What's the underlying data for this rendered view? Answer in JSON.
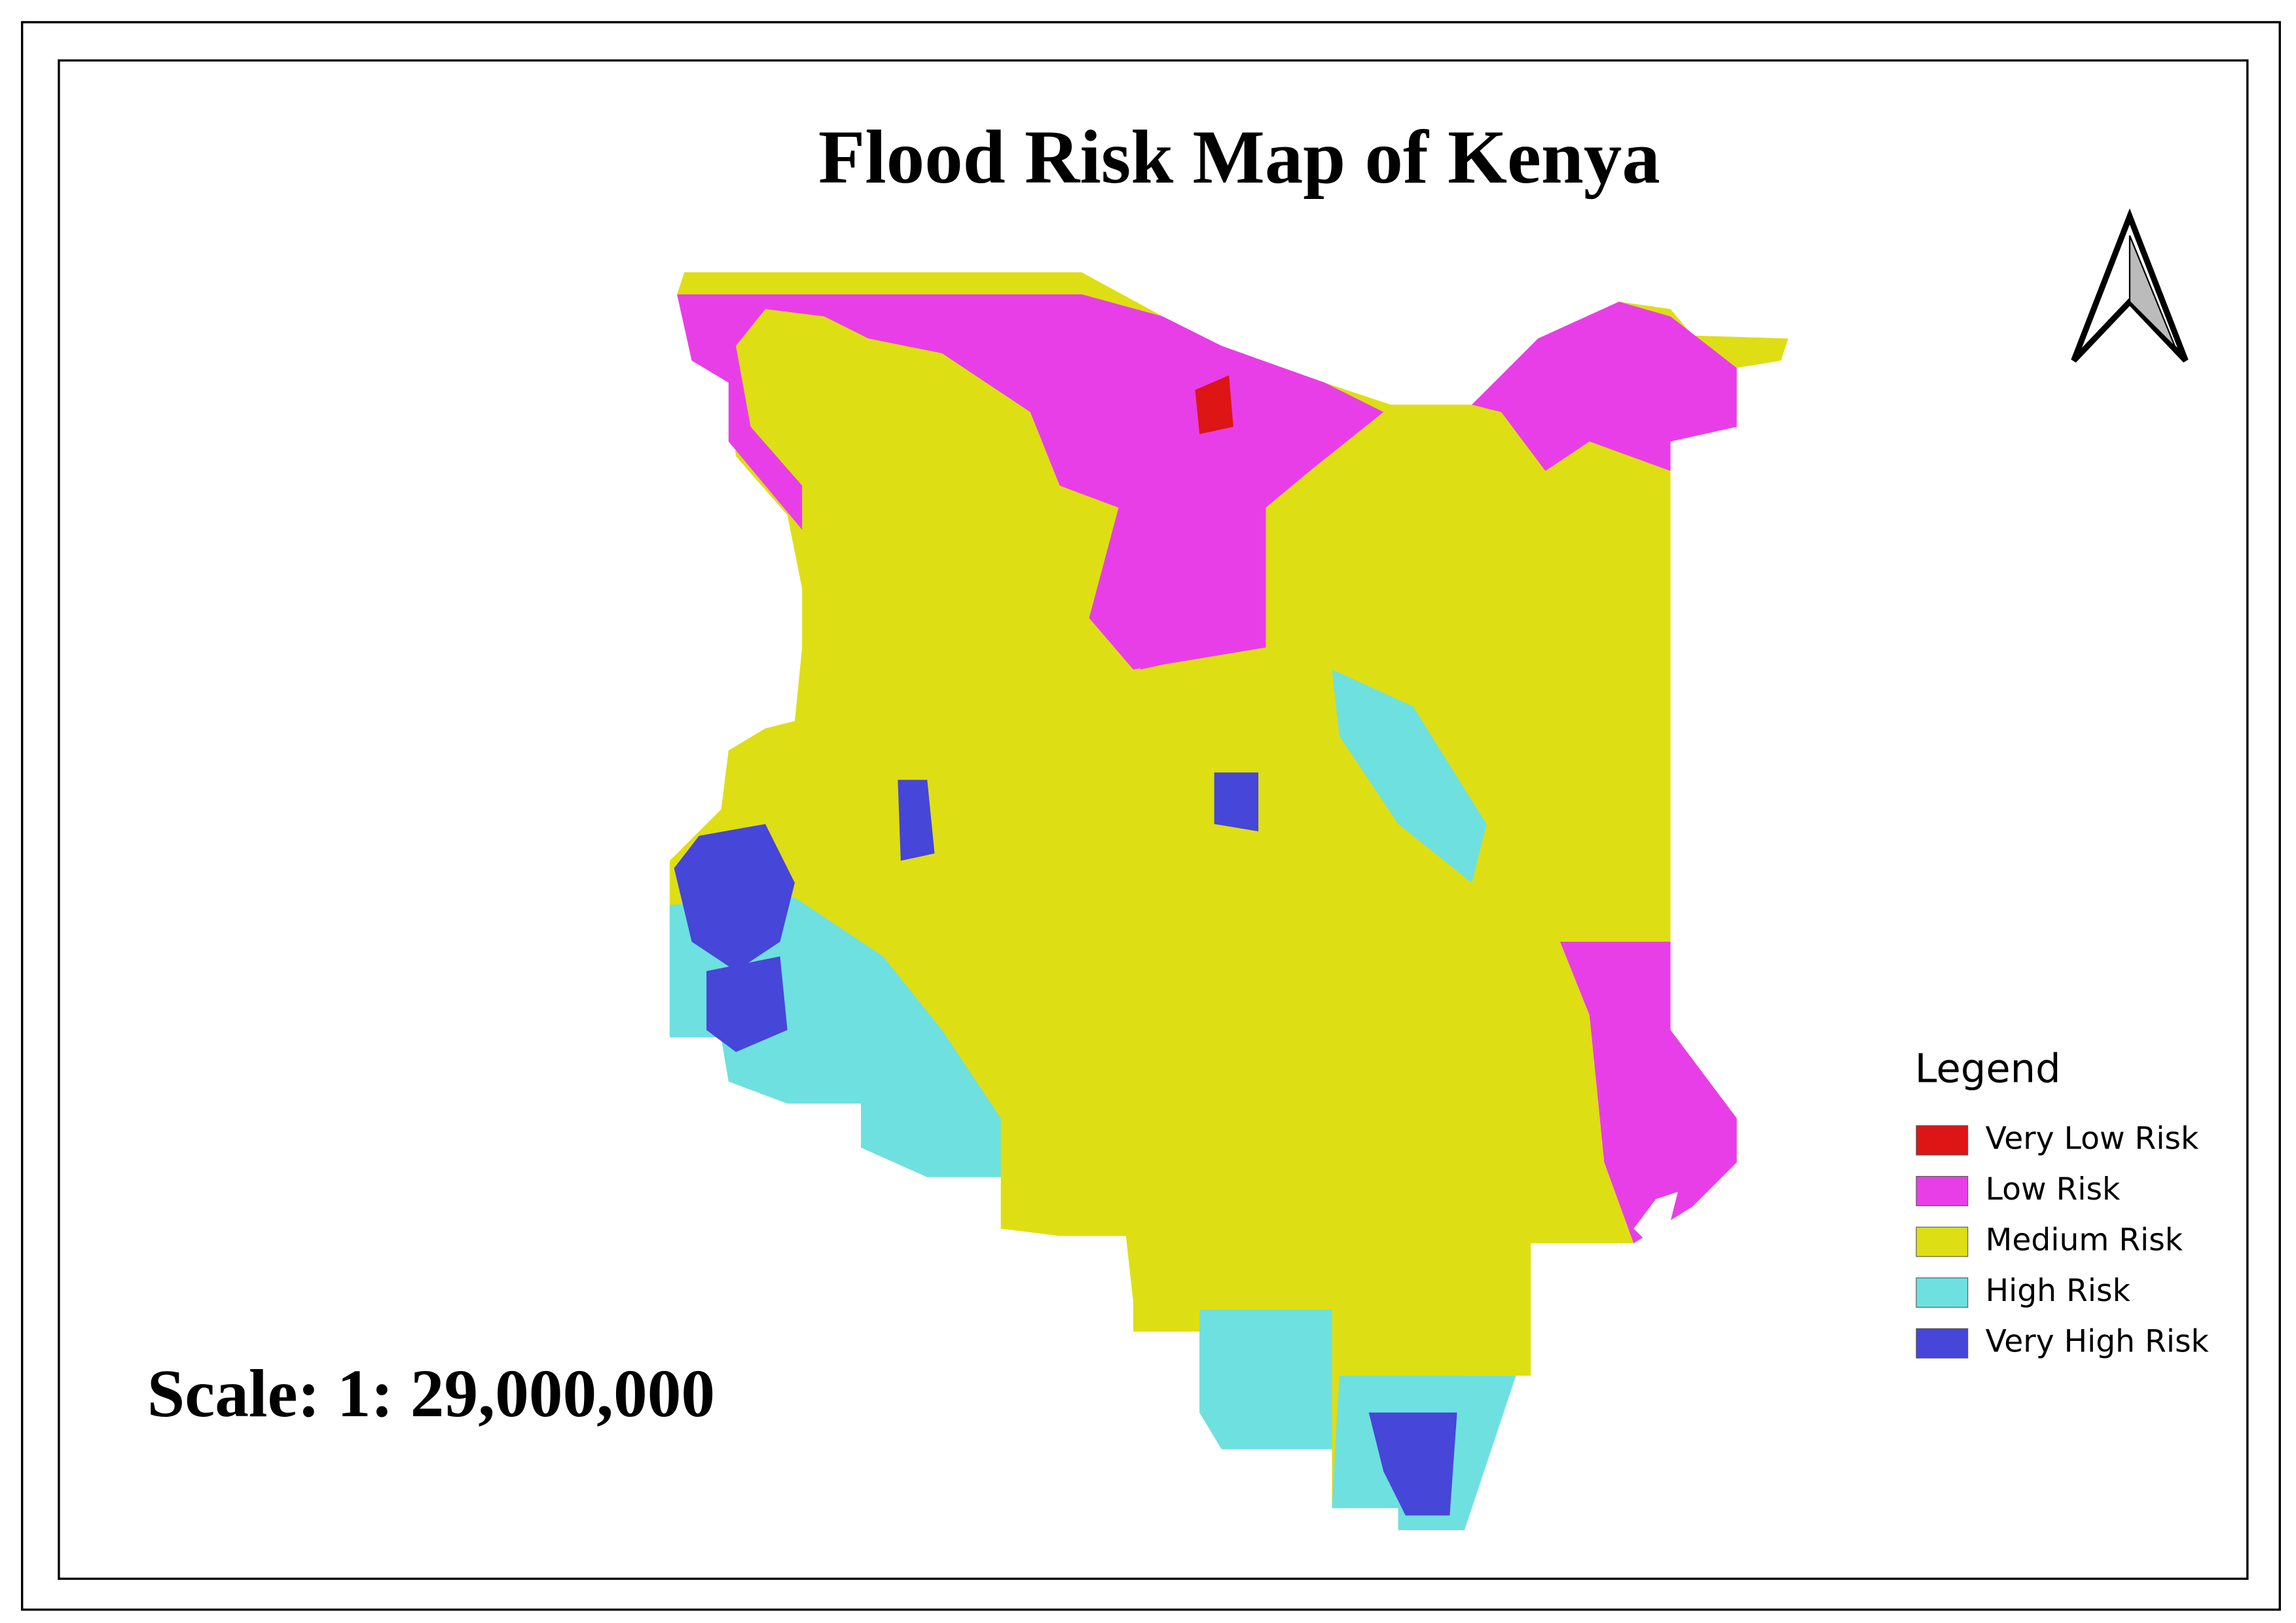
{
  "title": "Flood Risk Map of Kenya",
  "scale": "Scale: 1: 29,000,000",
  "legend": {
    "title": "Legend",
    "items": [
      {
        "label": "Very Low Risk",
        "color": "#dd1515"
      },
      {
        "label": "Low Risk",
        "color": "#e83ee8"
      },
      {
        "label": "Medium Risk",
        "color": "#dede14"
      },
      {
        "label": "High Risk",
        "color": "#6ee0e0"
      },
      {
        "label": "Very High Risk",
        "color": "#4646d8"
      }
    ]
  }
}
